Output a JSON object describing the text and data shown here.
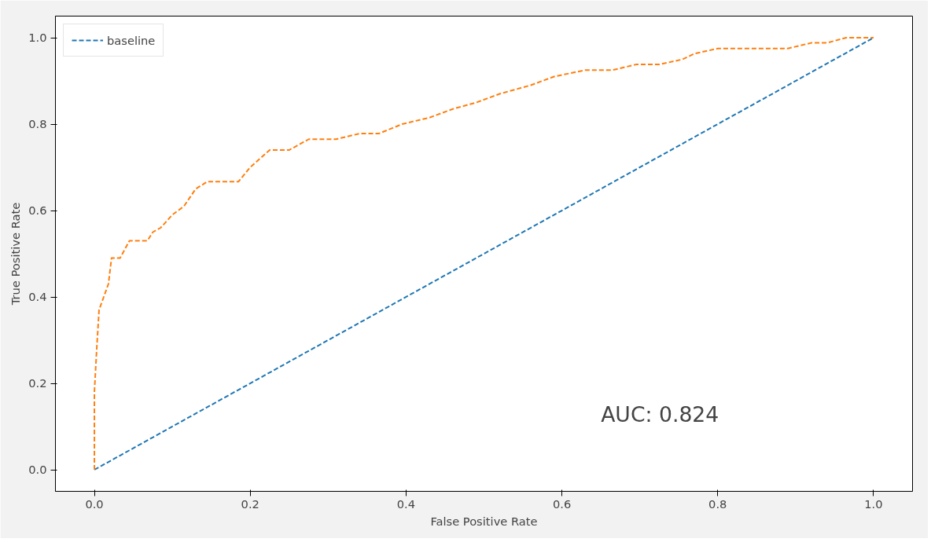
{
  "chart_data": {
    "type": "line",
    "xlabel": "False Positive Rate",
    "ylabel": "True Positive Rate",
    "annotations": [
      "AUC: 0.824"
    ],
    "xlim": [
      -0.05,
      1.05
    ],
    "ylim": [
      -0.05,
      1.05
    ],
    "xticks": [
      {
        "value": 0,
        "label": "0.0"
      },
      {
        "value": 0.2,
        "label": "0.2"
      },
      {
        "value": 0.4,
        "label": "0.4"
      },
      {
        "value": 0.6,
        "label": "0.6"
      },
      {
        "value": 0.8,
        "label": "0.8"
      },
      {
        "value": 1,
        "label": "1.0"
      }
    ],
    "yticks": [
      {
        "value": 0,
        "label": "0.0"
      },
      {
        "value": 0.2,
        "label": "0.2"
      },
      {
        "value": 0.4,
        "label": "0.4"
      },
      {
        "value": 0.6,
        "label": "0.6"
      },
      {
        "value": 0.8,
        "label": "0.8"
      },
      {
        "value": 1,
        "label": "1.0"
      }
    ],
    "grid": false,
    "legend": "top left",
    "line_style": "dashed",
    "marker": "none",
    "series": [
      {
        "name": "baseline",
        "color": "#1f77b4",
        "x": [
          0,
          1
        ],
        "values": [
          0,
          1
        ]
      },
      {
        "color": "#ff7f0e",
        "x": [
          0,
          0.0,
          0.003,
          0.006,
          0.012,
          0.018,
          0.022,
          0.033,
          0.045,
          0.068,
          0.075,
          0.085,
          0.1,
          0.115,
          0.13,
          0.145,
          0.185,
          0.2,
          0.225,
          0.25,
          0.275,
          0.31,
          0.34,
          0.365,
          0.395,
          0.43,
          0.46,
          0.49,
          0.52,
          0.56,
          0.59,
          0.63,
          0.665,
          0.695,
          0.725,
          0.755,
          0.77,
          0.8,
          0.89,
          0.92,
          0.94,
          0.965,
          1.0
        ],
        "values": [
          0,
          0.18,
          0.28,
          0.37,
          0.4,
          0.43,
          0.49,
          0.49,
          0.53,
          0.53,
          0.55,
          0.56,
          0.59,
          0.61,
          0.65,
          0.667,
          0.667,
          0.7,
          0.74,
          0.74,
          0.765,
          0.765,
          0.778,
          0.778,
          0.8,
          0.815,
          0.835,
          0.85,
          0.87,
          0.89,
          0.91,
          0.925,
          0.925,
          0.938,
          0.938,
          0.95,
          0.963,
          0.975,
          0.975,
          0.988,
          0.988,
          1.0,
          1.0
        ]
      }
    ]
  }
}
